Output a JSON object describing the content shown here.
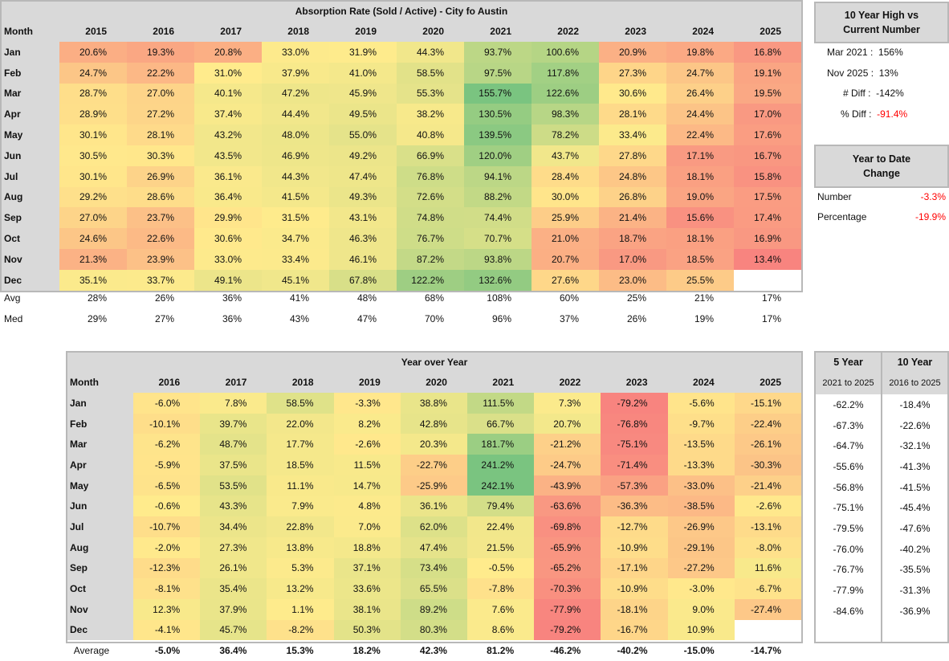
{
  "absorption": {
    "title": "Absorption Rate (Sold / Active) - City fo Austin",
    "month_header": "Month",
    "years": [
      "2015",
      "2016",
      "2017",
      "2018",
      "2019",
      "2020",
      "2021",
      "2022",
      "2023",
      "2024",
      "2025"
    ],
    "rows": [
      {
        "month": "Jan",
        "values": [
          "20.6%",
          "19.3%",
          "20.8%",
          "33.0%",
          "31.9%",
          "44.3%",
          "93.7%",
          "100.6%",
          "20.9%",
          "19.8%",
          "16.8%"
        ]
      },
      {
        "month": "Feb",
        "values": [
          "24.7%",
          "22.2%",
          "31.0%",
          "37.9%",
          "41.0%",
          "58.5%",
          "97.5%",
          "117.8%",
          "27.3%",
          "24.7%",
          "19.1%"
        ]
      },
      {
        "month": "Mar",
        "values": [
          "28.7%",
          "27.0%",
          "40.1%",
          "47.2%",
          "45.9%",
          "55.3%",
          "155.7%",
          "122.6%",
          "30.6%",
          "26.4%",
          "19.5%"
        ]
      },
      {
        "month": "Apr",
        "values": [
          "28.9%",
          "27.2%",
          "37.4%",
          "44.4%",
          "49.5%",
          "38.2%",
          "130.5%",
          "98.3%",
          "28.1%",
          "24.4%",
          "17.0%"
        ]
      },
      {
        "month": "May",
        "values": [
          "30.1%",
          "28.1%",
          "43.2%",
          "48.0%",
          "55.0%",
          "40.8%",
          "139.5%",
          "78.2%",
          "33.4%",
          "22.4%",
          "17.6%"
        ]
      },
      {
        "month": "Jun",
        "values": [
          "30.5%",
          "30.3%",
          "43.5%",
          "46.9%",
          "49.2%",
          "66.9%",
          "120.0%",
          "43.7%",
          "27.8%",
          "17.1%",
          "16.7%"
        ]
      },
      {
        "month": "Jul",
        "values": [
          "30.1%",
          "26.9%",
          "36.1%",
          "44.3%",
          "47.4%",
          "76.8%",
          "94.1%",
          "28.4%",
          "24.8%",
          "18.1%",
          "15.8%"
        ]
      },
      {
        "month": "Aug",
        "values": [
          "29.2%",
          "28.6%",
          "36.4%",
          "41.5%",
          "49.3%",
          "72.6%",
          "88.2%",
          "30.0%",
          "26.8%",
          "19.0%",
          "17.5%"
        ]
      },
      {
        "month": "Sep",
        "values": [
          "27.0%",
          "23.7%",
          "29.9%",
          "31.5%",
          "43.1%",
          "74.8%",
          "74.4%",
          "25.9%",
          "21.4%",
          "15.6%",
          "17.4%"
        ]
      },
      {
        "month": "Oct",
        "values": [
          "24.6%",
          "22.6%",
          "30.6%",
          "34.7%",
          "46.3%",
          "76.7%",
          "70.7%",
          "21.0%",
          "18.7%",
          "18.1%",
          "16.9%"
        ]
      },
      {
        "month": "Nov",
        "values": [
          "21.3%",
          "23.9%",
          "33.0%",
          "33.4%",
          "46.1%",
          "87.2%",
          "93.8%",
          "20.7%",
          "17.0%",
          "18.5%",
          "13.4%"
        ]
      },
      {
        "month": "Dec",
        "values": [
          "35.1%",
          "33.7%",
          "49.1%",
          "45.1%",
          "67.8%",
          "122.2%",
          "132.6%",
          "27.6%",
          "23.0%",
          "25.5%",
          ""
        ]
      }
    ],
    "avg_label": "Avg",
    "avg": [
      "28%",
      "26%",
      "36%",
      "41%",
      "48%",
      "68%",
      "108%",
      "60%",
      "25%",
      "21%",
      "17%"
    ],
    "med_label": "Med",
    "med": [
      "29%",
      "27%",
      "36%",
      "43%",
      "47%",
      "70%",
      "96%",
      "37%",
      "26%",
      "19%",
      "17%"
    ]
  },
  "high_vs_current": {
    "title_line1": "10 Year High vs",
    "title_line2": "Current Number",
    "high_label": "Mar 2021 :",
    "high_value": "156%",
    "current_label": "Nov 2025 :",
    "current_value": "13%",
    "num_diff_label": "# Diff :",
    "num_diff_value": "-142%",
    "pct_diff_label": "% Diff :",
    "pct_diff_value": "-91.4%"
  },
  "ytd": {
    "title_line1": "Year to Date",
    "title_line2": "Change",
    "number_label": "Number",
    "number_value": "-3.3%",
    "percentage_label": "Percentage",
    "percentage_value": "-19.9%"
  },
  "yoy": {
    "title": "Year over Year",
    "month_header": "Month",
    "years": [
      "2016",
      "2017",
      "2018",
      "2019",
      "2020",
      "2021",
      "2022",
      "2023",
      "2024",
      "2025"
    ],
    "rows": [
      {
        "month": "Jan",
        "values": [
          "-6.0%",
          "7.8%",
          "58.5%",
          "-3.3%",
          "38.8%",
          "111.5%",
          "7.3%",
          "-79.2%",
          "-5.6%",
          "-15.1%"
        ]
      },
      {
        "month": "Feb",
        "values": [
          "-10.1%",
          "39.7%",
          "22.0%",
          "8.2%",
          "42.8%",
          "66.7%",
          "20.7%",
          "-76.8%",
          "-9.7%",
          "-22.4%"
        ]
      },
      {
        "month": "Mar",
        "values": [
          "-6.2%",
          "48.7%",
          "17.7%",
          "-2.6%",
          "20.3%",
          "181.7%",
          "-21.2%",
          "-75.1%",
          "-13.5%",
          "-26.1%"
        ]
      },
      {
        "month": "Apr",
        "values": [
          "-5.9%",
          "37.5%",
          "18.5%",
          "11.5%",
          "-22.7%",
          "241.2%",
          "-24.7%",
          "-71.4%",
          "-13.3%",
          "-30.3%"
        ]
      },
      {
        "month": "May",
        "values": [
          "-6.5%",
          "53.5%",
          "11.1%",
          "14.7%",
          "-25.9%",
          "242.1%",
          "-43.9%",
          "-57.3%",
          "-33.0%",
          "-21.4%"
        ]
      },
      {
        "month": "Jun",
        "values": [
          "-0.6%",
          "43.3%",
          "7.9%",
          "4.8%",
          "36.1%",
          "79.4%",
          "-63.6%",
          "-36.3%",
          "-38.5%",
          "-2.6%"
        ]
      },
      {
        "month": "Jul",
        "values": [
          "-10.7%",
          "34.4%",
          "22.8%",
          "7.0%",
          "62.0%",
          "22.4%",
          "-69.8%",
          "-12.7%",
          "-26.9%",
          "-13.1%"
        ]
      },
      {
        "month": "Aug",
        "values": [
          "-2.0%",
          "27.3%",
          "13.8%",
          "18.8%",
          "47.4%",
          "21.5%",
          "-65.9%",
          "-10.9%",
          "-29.1%",
          "-8.0%"
        ]
      },
      {
        "month": "Sep",
        "values": [
          "-12.3%",
          "26.1%",
          "5.3%",
          "37.1%",
          "73.4%",
          "-0.5%",
          "-65.2%",
          "-17.1%",
          "-27.2%",
          "11.6%"
        ]
      },
      {
        "month": "Oct",
        "values": [
          "-8.1%",
          "35.4%",
          "13.2%",
          "33.6%",
          "65.5%",
          "-7.8%",
          "-70.3%",
          "-10.9%",
          "-3.0%",
          "-6.7%"
        ]
      },
      {
        "month": "Nov",
        "values": [
          "12.3%",
          "37.9%",
          "1.1%",
          "38.1%",
          "89.2%",
          "7.6%",
          "-77.9%",
          "-18.1%",
          "9.0%",
          "-27.4%"
        ]
      },
      {
        "month": "Dec",
        "values": [
          "-4.1%",
          "45.7%",
          "-8.2%",
          "50.3%",
          "80.3%",
          "8.6%",
          "-79.2%",
          "-16.7%",
          "10.9%",
          ""
        ]
      }
    ],
    "avg_label": "Average",
    "avg": [
      "-5.0%",
      "36.4%",
      "15.3%",
      "18.2%",
      "42.3%",
      "81.2%",
      "-46.2%",
      "-40.2%",
      "-15.0%",
      "-14.7%"
    ]
  },
  "span_change": {
    "col1_title": "5 Year",
    "col1_sub": "2021 to 2025",
    "col2_title": "10 Year",
    "col2_sub": "2016 to 2025",
    "rows": [
      [
        "-62.2%",
        "-18.4%"
      ],
      [
        "-67.3%",
        "-22.6%"
      ],
      [
        "-64.7%",
        "-32.1%"
      ],
      [
        "-55.6%",
        "-41.3%"
      ],
      [
        "-56.8%",
        "-41.5%"
      ],
      [
        "-75.1%",
        "-45.4%"
      ],
      [
        "-79.5%",
        "-47.6%"
      ],
      [
        "-76.0%",
        "-40.2%"
      ],
      [
        "-76.7%",
        "-35.5%"
      ],
      [
        "-77.9%",
        "-31.3%"
      ],
      [
        "-84.6%",
        "-36.9%"
      ],
      [
        "",
        ""
      ]
    ]
  },
  "colors": {
    "low": "#f8847f",
    "mid": "#ffeb8c",
    "high": "#7ac480",
    "header": "#d9d9d9",
    "negative": "#ff0000"
  }
}
